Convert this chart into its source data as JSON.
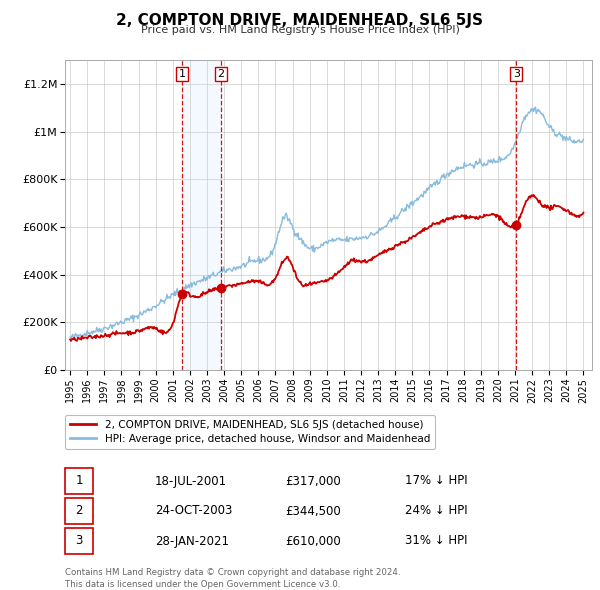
{
  "title": "2, COMPTON DRIVE, MAIDENHEAD, SL6 5JS",
  "subtitle": "Price paid vs. HM Land Registry's House Price Index (HPI)",
  "ylim": [
    0,
    1300000
  ],
  "yticks": [
    0,
    200000,
    400000,
    600000,
    800000,
    1000000,
    1200000
  ],
  "ytick_labels": [
    "£0",
    "£200K",
    "£400K",
    "£600K",
    "£800K",
    "£1M",
    "£1.2M"
  ],
  "xlim_start": 1994.7,
  "xlim_end": 2025.5,
  "xtick_years": [
    1995,
    1996,
    1997,
    1998,
    1999,
    2000,
    2001,
    2002,
    2003,
    2004,
    2005,
    2006,
    2007,
    2008,
    2009,
    2010,
    2011,
    2012,
    2013,
    2014,
    2015,
    2016,
    2017,
    2018,
    2019,
    2020,
    2021,
    2022,
    2023,
    2024,
    2025
  ],
  "red_line_color": "#cc0000",
  "blue_line_color": "#88bbdd",
  "marker_color": "#cc0000",
  "vline_color": "#cc0000",
  "shade_color": "#ddeeff",
  "transactions": [
    {
      "label": "1",
      "date_str": "18-JUL-2001",
      "year": 2001.54,
      "price": 317000,
      "pct": "17%",
      "dir": "↓"
    },
    {
      "label": "2",
      "date_str": "24-OCT-2003",
      "year": 2003.81,
      "price": 344500,
      "pct": "24%",
      "dir": "↓"
    },
    {
      "label": "3",
      "date_str": "28-JAN-2021",
      "year": 2021.07,
      "price": 610000,
      "pct": "31%",
      "dir": "↓"
    }
  ],
  "legend_red_label": "2, COMPTON DRIVE, MAIDENHEAD, SL6 5JS (detached house)",
  "legend_blue_label": "HPI: Average price, detached house, Windsor and Maidenhead",
  "footer_line1": "Contains HM Land Registry data © Crown copyright and database right 2024.",
  "footer_line2": "This data is licensed under the Open Government Licence v3.0.",
  "background_color": "#ffffff",
  "plot_bg_color": "#ffffff",
  "grid_color": "#cccccc"
}
